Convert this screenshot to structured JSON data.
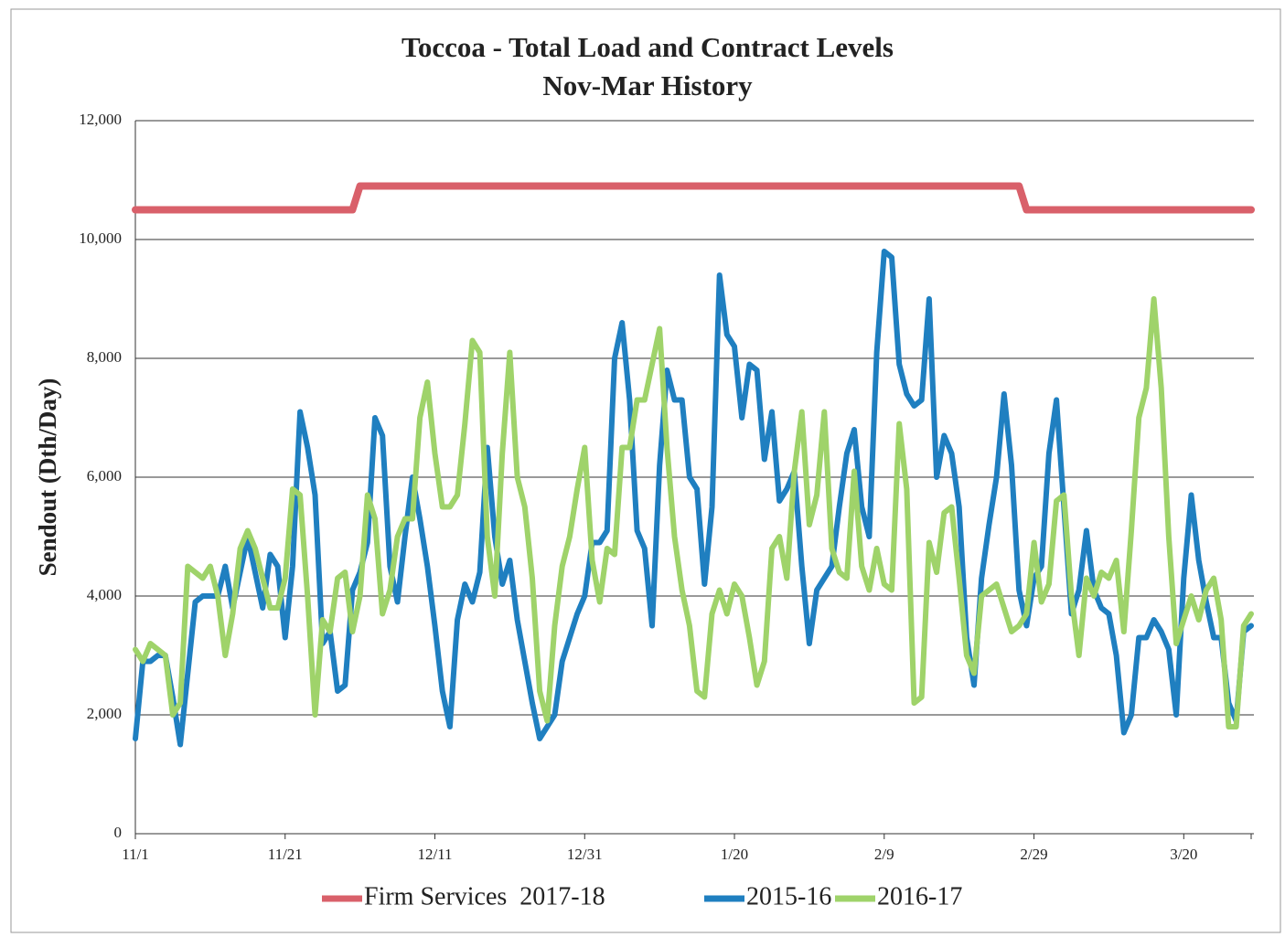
{
  "chart_data": {
    "type": "line",
    "title": "Toccoa - Total Load and Contract Levels",
    "subtitle": "Nov-Mar History",
    "y_label": "Sendout (Dth/Day)",
    "categories": [
      "11/1",
      null,
      null,
      null,
      null,
      null,
      null,
      null,
      null,
      null,
      null,
      null,
      null,
      null,
      null,
      null,
      null,
      null,
      null,
      null,
      "11/21",
      null,
      null,
      null,
      null,
      null,
      null,
      null,
      null,
      null,
      null,
      null,
      null,
      null,
      null,
      null,
      null,
      null,
      null,
      null,
      "12/11",
      null,
      null,
      null,
      null,
      null,
      null,
      null,
      null,
      null,
      null,
      null,
      null,
      null,
      null,
      null,
      null,
      null,
      null,
      null,
      "12/31",
      null,
      null,
      null,
      null,
      null,
      null,
      null,
      null,
      null,
      null,
      null,
      null,
      null,
      null,
      null,
      null,
      null,
      null,
      null,
      "1/20",
      null,
      null,
      null,
      null,
      null,
      null,
      null,
      null,
      null,
      null,
      null,
      null,
      null,
      null,
      null,
      null,
      null,
      null,
      null,
      "2/9",
      null,
      null,
      null,
      null,
      null,
      null,
      null,
      null,
      null,
      null,
      null,
      null,
      null,
      null,
      null,
      null,
      null,
      null,
      null,
      "2/29",
      null,
      null,
      null,
      null,
      null,
      null,
      null,
      null,
      null,
      null,
      null,
      null,
      null,
      null,
      null,
      null,
      null,
      null,
      null,
      "3/20",
      null,
      null,
      null,
      null,
      null,
      null,
      null,
      null,
      null
    ],
    "series": [
      {
        "name": "Firm Services  2017-18",
        "color": "#d9606a",
        "values": [
          10500,
          10500,
          10500,
          10500,
          10500,
          10500,
          10500,
          10500,
          10500,
          10500,
          10500,
          10500,
          10500,
          10500,
          10500,
          10500,
          10500,
          10500,
          10500,
          10500,
          10500,
          10500,
          10500,
          10500,
          10500,
          10500,
          10500,
          10500,
          10500,
          10500,
          10900,
          10900,
          10900,
          10900,
          10900,
          10900,
          10900,
          10900,
          10900,
          10900,
          10900,
          10900,
          10900,
          10900,
          10900,
          10900,
          10900,
          10900,
          10900,
          10900,
          10900,
          10900,
          10900,
          10900,
          10900,
          10900,
          10900,
          10900,
          10900,
          10900,
          10900,
          10900,
          10900,
          10900,
          10900,
          10900,
          10900,
          10900,
          10900,
          10900,
          10900,
          10900,
          10900,
          10900,
          10900,
          10900,
          10900,
          10900,
          10900,
          10900,
          10900,
          10900,
          10900,
          10900,
          10900,
          10900,
          10900,
          10900,
          10900,
          10900,
          10900,
          10900,
          10900,
          10900,
          10900,
          10900,
          10900,
          10900,
          10900,
          10900,
          10900,
          10900,
          10900,
          10900,
          10900,
          10900,
          10900,
          10900,
          10900,
          10900,
          10900,
          10900,
          10900,
          10900,
          10900,
          10900,
          10900,
          10900,
          10900,
          10500,
          10500,
          10500,
          10500,
          10500,
          10500,
          10500,
          10500,
          10500,
          10500,
          10500,
          10500,
          10500,
          10500,
          10500,
          10500,
          10500,
          10500,
          10500,
          10500,
          10500,
          10500,
          10500,
          10500,
          10500,
          10500,
          10500,
          10500,
          10500,
          10500,
          10500
        ]
      },
      {
        "name": "2015-16",
        "color": "#1f7fc0",
        "values": [
          1600,
          2900,
          2900,
          3000,
          3000,
          2300,
          1500,
          2700,
          3900,
          4000,
          4000,
          4000,
          4500,
          3800,
          4400,
          5000,
          4400,
          3800,
          4700,
          4500,
          3300,
          4500,
          7100,
          6500,
          5700,
          3200,
          3400,
          2400,
          2500,
          4100,
          4400,
          4900,
          7000,
          6700,
          4500,
          3900,
          5000,
          6000,
          5300,
          4500,
          3500,
          2400,
          1800,
          3600,
          4200,
          3900,
          4400,
          6500,
          5000,
          4200,
          4600,
          3600,
          2900,
          2200,
          1600,
          1800,
          2000,
          2900,
          3300,
          3700,
          4000,
          4900,
          4900,
          5100,
          8000,
          8600,
          7300,
          5100,
          4800,
          3500,
          6200,
          7800,
          7300,
          7300,
          6000,
          5800,
          4200,
          5500,
          9400,
          8400,
          8200,
          7000,
          7900,
          7800,
          6300,
          7100,
          5600,
          5800,
          6100,
          4500,
          3200,
          4100,
          4300,
          4500,
          5500,
          6400,
          6800,
          5500,
          5000,
          8100,
          9800,
          9700,
          7900,
          7400,
          7200,
          7300,
          9000,
          6000,
          6700,
          6400,
          5500,
          3300,
          2500,
          4300,
          5200,
          6000,
          7400,
          6200,
          4100,
          3500,
          4300,
          4500,
          6400,
          7300,
          5500,
          3700,
          4100,
          5100,
          4100,
          3800,
          3700,
          3000,
          1700,
          2000,
          3300,
          3300,
          3600,
          3400,
          3100,
          2000,
          4300,
          5700,
          4600,
          3900,
          3300,
          3300,
          2200,
          1900,
          3400,
          3500
        ]
      },
      {
        "name": "2016-17",
        "color": "#9fd36a",
        "values": [
          3100,
          2900,
          3200,
          3100,
          3000,
          2000,
          2200,
          4500,
          4400,
          4300,
          4500,
          4000,
          3000,
          3700,
          4800,
          5100,
          4800,
          4300,
          3800,
          3800,
          4300,
          5800,
          5700,
          4000,
          2000,
          3600,
          3400,
          4300,
          4400,
          3400,
          4000,
          5700,
          5300,
          3700,
          4100,
          5000,
          5300,
          5300,
          7000,
          7600,
          6400,
          5500,
          5500,
          5700,
          6900,
          8300,
          8100,
          5000,
          4000,
          6400,
          8100,
          6000,
          5500,
          4300,
          2400,
          1900,
          3500,
          4500,
          5000,
          5800,
          6500,
          4600,
          3900,
          4800,
          4700,
          6500,
          6500,
          7300,
          7300,
          7900,
          8500,
          6500,
          5000,
          4100,
          3500,
          2400,
          2300,
          3700,
          4100,
          3700,
          4200,
          4000,
          3300,
          2500,
          2900,
          4800,
          5000,
          4300,
          6100,
          7100,
          5200,
          5700,
          7100,
          4800,
          4400,
          4300,
          6100,
          4500,
          4100,
          4800,
          4200,
          4100,
          6900,
          5800,
          2200,
          2300,
          4900,
          4400,
          5400,
          5500,
          4300,
          3000,
          2700,
          4000,
          4100,
          4200,
          3800,
          3400,
          3500,
          3700,
          4900,
          3900,
          4200,
          5600,
          5700,
          4000,
          3000,
          4300,
          4000,
          4400,
          4300,
          4600,
          3400,
          5100,
          7000,
          7500,
          9000,
          7500,
          5000,
          3200,
          3600,
          4000,
          3600,
          4100,
          4300,
          3600,
          1800,
          1800,
          3500,
          3700
        ]
      }
    ],
    "ylim": [
      0,
      12000
    ],
    "yticks": [
      0,
      {
        "value": 2000,
        "label": "2,000"
      },
      {
        "value": 4000,
        "label": "4,000"
      },
      {
        "value": 6000,
        "label": "6,000"
      },
      {
        "value": 8000,
        "label": "8,000"
      },
      {
        "value": 10000,
        "label": "10,000"
      },
      {
        "value": 12000,
        "label": "12,000"
      }
    ],
    "grid": true,
    "legend": "bottom"
  }
}
